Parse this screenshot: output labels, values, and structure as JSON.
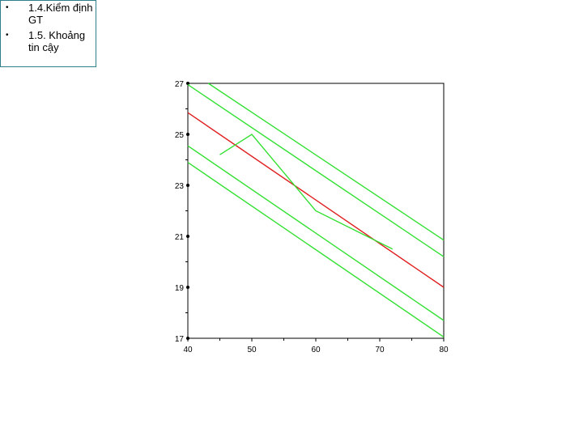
{
  "nav": {
    "items": [
      {
        "label": "1.4.Kiểm định GT"
      },
      {
        "label": "1.5. Khoảng tin cậy"
      }
    ]
  },
  "colors": {
    "regression_line": "#e02020",
    "band_lines": "#33e033",
    "nav_border": "#2f7f8a"
  },
  "chart_data": {
    "type": "line",
    "xlim": [
      40,
      80
    ],
    "ylim": [
      17,
      27
    ],
    "x_ticks": [
      40,
      50,
      60,
      70,
      80
    ],
    "y_ticks": [
      17,
      19,
      21,
      23,
      25,
      27
    ],
    "grid": false,
    "series": [
      {
        "role": "regression",
        "color": "#e02020",
        "points": [
          [
            40,
            25.85
          ],
          [
            80,
            19.0
          ]
        ]
      },
      {
        "role": "upper-band-outer",
        "color": "#33e033",
        "points": [
          [
            43.2,
            27.0
          ],
          [
            80,
            20.85
          ]
        ]
      },
      {
        "role": "upper-band-inner",
        "color": "#33e033",
        "points": [
          [
            40,
            26.95
          ],
          [
            80,
            20.2
          ]
        ]
      },
      {
        "role": "lower-band-inner",
        "color": "#33e033",
        "points": [
          [
            40,
            24.55
          ],
          [
            80,
            17.7
          ]
        ]
      },
      {
        "role": "lower-band-outer",
        "color": "#33e033",
        "points": [
          [
            40,
            23.9
          ],
          [
            80,
            17.05
          ]
        ]
      },
      {
        "role": "observed",
        "color": "#33e033",
        "points": [
          [
            45,
            24.2
          ],
          [
            50,
            25.0
          ],
          [
            60,
            22.0
          ],
          [
            72,
            20.5
          ]
        ]
      }
    ]
  }
}
